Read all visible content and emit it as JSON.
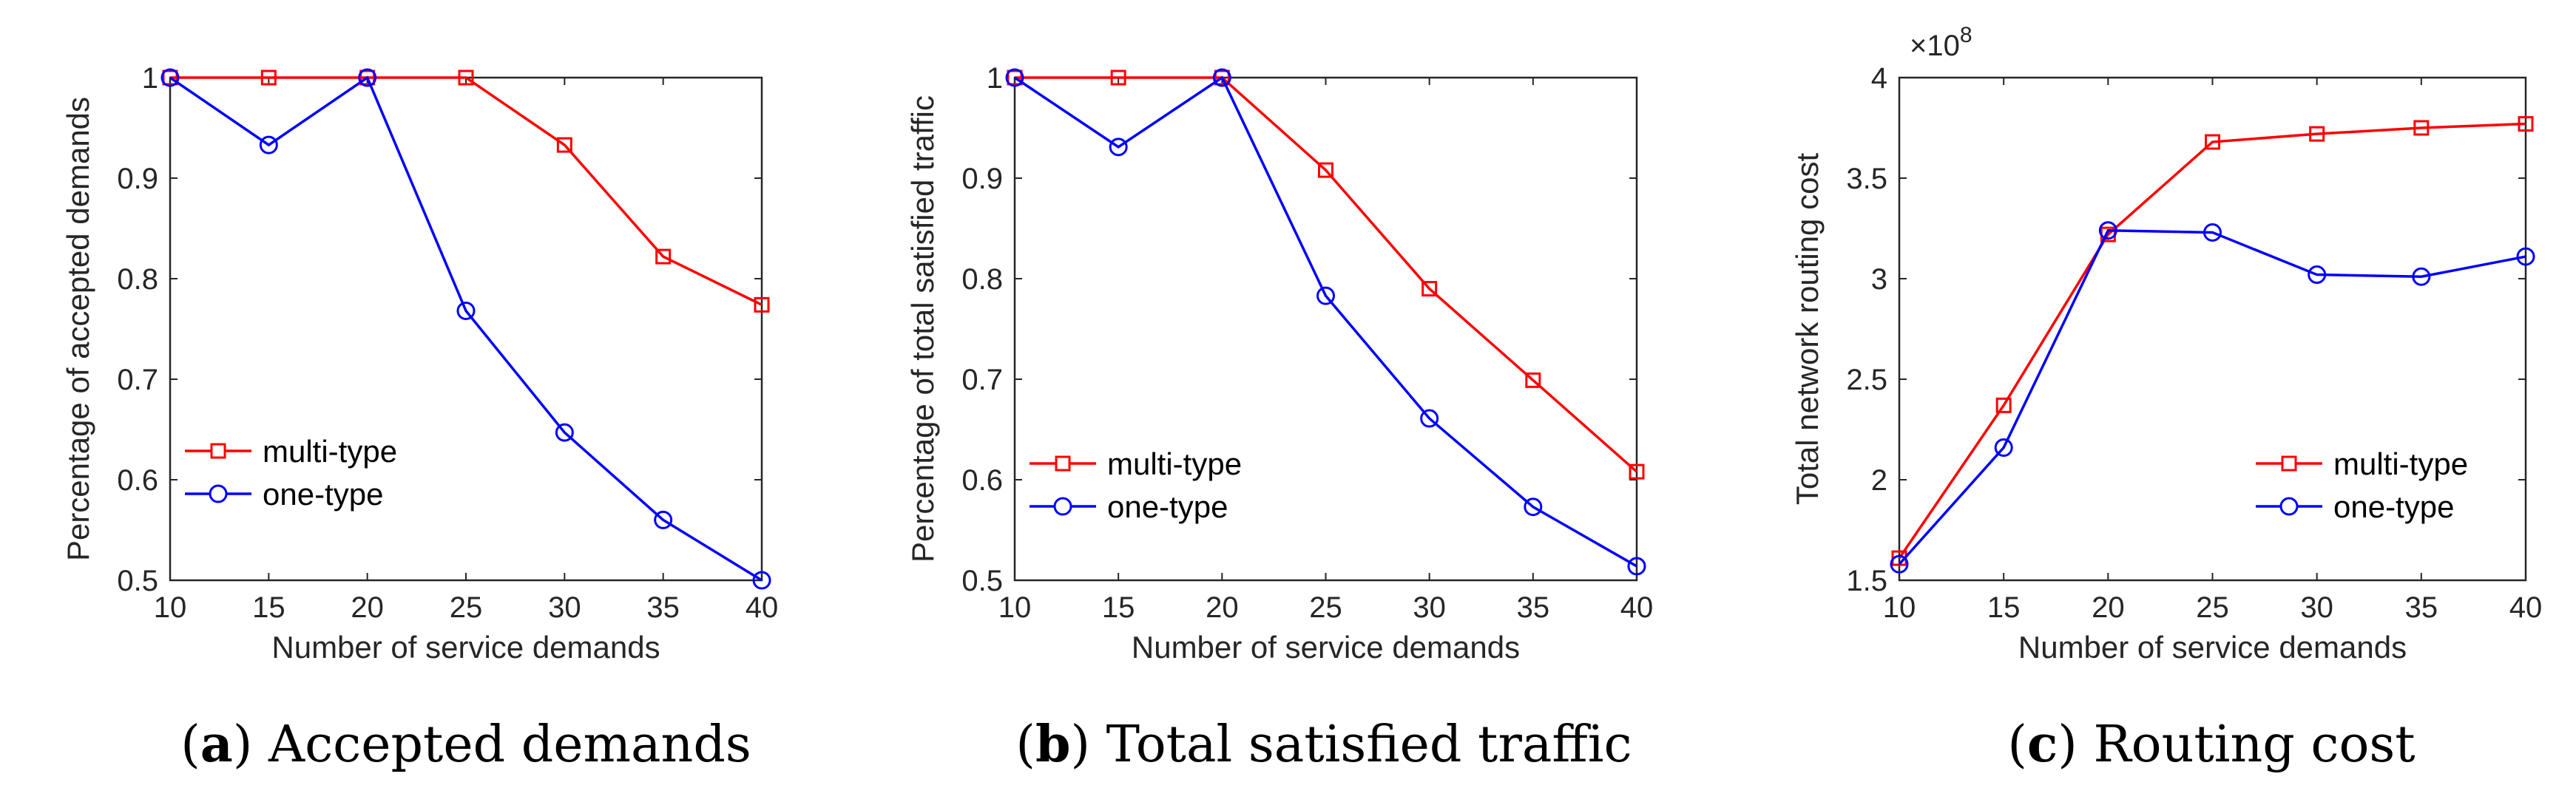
{
  "chart_data": [
    {
      "type": "line",
      "panel_letter": "a",
      "caption": "Accepted demands",
      "xlabel": "Number of service demands",
      "ylabel": "Percentage of accepted demands",
      "x": [
        10,
        15,
        20,
        25,
        30,
        35,
        40
      ],
      "xticks": [
        "10",
        "15",
        "20",
        "25",
        "30",
        "35",
        "40"
      ],
      "xlim": [
        10,
        40
      ],
      "ylim": [
        0.5,
        1.0
      ],
      "yticks": [
        "0.5",
        "0.6",
        "0.7",
        "0.8",
        "0.9",
        "1"
      ],
      "ytick_values": [
        0.5,
        0.6,
        0.7,
        0.8,
        0.9,
        1.0
      ],
      "exponent_label": "",
      "legend_position": "bottom-left",
      "series": [
        {
          "name": "multi-type",
          "color": "#ff0000",
          "marker": "square",
          "values": [
            1.0,
            1.0,
            1.0,
            1.0,
            0.933,
            0.822,
            0.774
          ]
        },
        {
          "name": "one-type",
          "color": "#0000ff",
          "marker": "circle",
          "values": [
            1.0,
            0.933,
            1.0,
            0.768,
            0.647,
            0.56,
            0.5
          ]
        }
      ]
    },
    {
      "type": "line",
      "panel_letter": "b",
      "caption": "Total satisfied traffic",
      "xlabel": "Number of service demands",
      "ylabel": "Percentage of total satisfied traffic",
      "x": [
        10,
        15,
        20,
        25,
        30,
        35,
        40
      ],
      "xticks": [
        "10",
        "15",
        "20",
        "25",
        "30",
        "35",
        "40"
      ],
      "xlim": [
        10,
        40
      ],
      "ylim": [
        0.5,
        1.0
      ],
      "yticks": [
        "0.5",
        "0.6",
        "0.7",
        "0.8",
        "0.9",
        "1"
      ],
      "ytick_values": [
        0.5,
        0.6,
        0.7,
        0.8,
        0.9,
        1.0
      ],
      "exponent_label": "",
      "legend_position": "bottom-left",
      "series": [
        {
          "name": "multi-type",
          "color": "#ff0000",
          "marker": "square",
          "values": [
            1.0,
            1.0,
            1.0,
            0.908,
            0.79,
            0.699,
            0.608
          ]
        },
        {
          "name": "one-type",
          "color": "#0000ff",
          "marker": "circle",
          "values": [
            1.0,
            0.931,
            1.0,
            0.783,
            0.661,
            0.573,
            0.514
          ]
        }
      ]
    },
    {
      "type": "line",
      "panel_letter": "c",
      "caption": "Routing cost",
      "xlabel": "Number of service demands",
      "ylabel": "Total network routing cost",
      "x": [
        10,
        15,
        20,
        25,
        30,
        35,
        40
      ],
      "xticks": [
        "10",
        "15",
        "20",
        "25",
        "30",
        "35",
        "40"
      ],
      "xlim": [
        10,
        40
      ],
      "ylim": [
        1.5,
        4.0
      ],
      "yticks": [
        "1.5",
        "2",
        "2.5",
        "3",
        "3.5",
        "4"
      ],
      "ytick_values": [
        1.5,
        2.0,
        2.5,
        3.0,
        3.5,
        4.0
      ],
      "exponent_label": "×10",
      "exponent_power": "8",
      "legend_position": "bottom-right",
      "series": [
        {
          "name": "multi-type",
          "color": "#ff0000",
          "marker": "square",
          "values": [
            1.61,
            2.37,
            3.22,
            3.68,
            3.72,
            3.75,
            3.77
          ]
        },
        {
          "name": "one-type",
          "color": "#0000ff",
          "marker": "circle",
          "values": [
            1.58,
            2.16,
            3.24,
            3.23,
            3.02,
            3.01,
            3.11
          ]
        }
      ]
    }
  ]
}
